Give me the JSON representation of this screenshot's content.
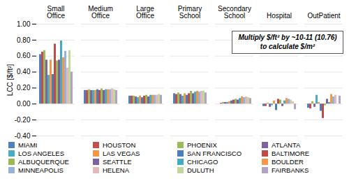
{
  "chart_data": {
    "type": "bar",
    "ylabel": "LCC [$/ft²]",
    "annotation": "Multiply $/ft² by ~10-11 (10.76) to calculate $/m²",
    "categories": [
      "Small Office",
      "Medium Office",
      "Large Office",
      "Primary School",
      "Secondary School",
      "Hospital",
      "OutPatient"
    ],
    "series": [
      {
        "name": "MIAMI",
        "color": "#4F81BD",
        "values": [
          0.62,
          0.17,
          0.1,
          0.13,
          0.0,
          -0.03,
          -0.05
        ]
      },
      {
        "name": "HOUSTON",
        "color": "#C0504D",
        "values": [
          0.65,
          0.17,
          0.1,
          0.12,
          0.01,
          -0.03,
          -0.06
        ]
      },
      {
        "name": "PHOENIX",
        "color": "#9BBB59",
        "values": [
          0.67,
          0.18,
          0.1,
          0.14,
          0.02,
          0.01,
          0.03
        ]
      },
      {
        "name": "ATLANTA",
        "color": "#8064A2",
        "values": [
          0.55,
          0.17,
          0.09,
          0.12,
          0.02,
          -0.04,
          -0.04
        ]
      },
      {
        "name": "LOS ANGELES",
        "color": "#4BACC6",
        "values": [
          0.36,
          0.17,
          0.08,
          0.1,
          0.02,
          -0.02,
          0.11
        ]
      },
      {
        "name": "LAS VEGAS",
        "color": "#F79646",
        "values": [
          0.55,
          0.17,
          0.1,
          0.13,
          0.03,
          0.04,
          0.02
        ]
      },
      {
        "name": "SAN FRANCISCO",
        "color": "#4A7EBB",
        "values": [
          0.37,
          0.18,
          0.08,
          0.11,
          0.04,
          -0.08,
          -0.09
        ]
      },
      {
        "name": "BALTIMORE",
        "color": "#BE4B48",
        "values": [
          0.75,
          0.17,
          0.1,
          0.13,
          0.05,
          0.06,
          -0.18
        ]
      },
      {
        "name": "ALBUQUERQUE",
        "color": "#98B954",
        "values": [
          0.54,
          0.19,
          0.11,
          0.16,
          0.06,
          0.05,
          -0.02
        ]
      },
      {
        "name": "SEATTLE",
        "color": "#7D60A0",
        "values": [
          0.55,
          0.17,
          0.09,
          0.13,
          0.05,
          -0.03,
          0.06
        ]
      },
      {
        "name": "CHICAGO",
        "color": "#46AAC5",
        "values": [
          0.79,
          0.18,
          0.11,
          0.15,
          0.07,
          0.04,
          0.02
        ]
      },
      {
        "name": "BOULDER",
        "color": "#F79647",
        "values": [
          0.58,
          0.18,
          0.11,
          0.16,
          0.09,
          0.07,
          0.12
        ]
      },
      {
        "name": "MINNEAPOLIS",
        "color": "#95B3D7",
        "values": [
          0.66,
          0.18,
          0.11,
          0.15,
          0.08,
          0.06,
          0.09
        ]
      },
      {
        "name": "HELENA",
        "color": "#E6B9B8",
        "values": [
          0.45,
          0.19,
          0.11,
          0.16,
          0.09,
          0.05,
          0.11
        ]
      },
      {
        "name": "DULUTH",
        "color": "#C3D69B",
        "values": [
          0.67,
          0.18,
          0.12,
          0.16,
          0.08,
          0.03,
          0.0
        ]
      },
      {
        "name": "FAIRBANKS",
        "color": "#B3A2C7",
        "values": [
          0.4,
          0.17,
          0.11,
          0.14,
          0.07,
          -0.07,
          0.1
        ]
      }
    ],
    "ylim": [
      -0.4,
      1.0
    ],
    "yticks": [
      {
        "value": -0.4,
        "label": "-0.40"
      },
      {
        "value": -0.2,
        "label": "-0.20"
      },
      {
        "value": 0,
        "label": "0.00"
      },
      {
        "value": 0.2,
        "label": "0.20"
      },
      {
        "value": 0.4,
        "label": "0.40"
      },
      {
        "value": 0.6,
        "label": "0.60"
      },
      {
        "value": 0.8,
        "label": "0.80"
      },
      {
        "value": 1.0,
        "label": "1.00"
      }
    ],
    "grid": true,
    "legend": "bottom"
  }
}
